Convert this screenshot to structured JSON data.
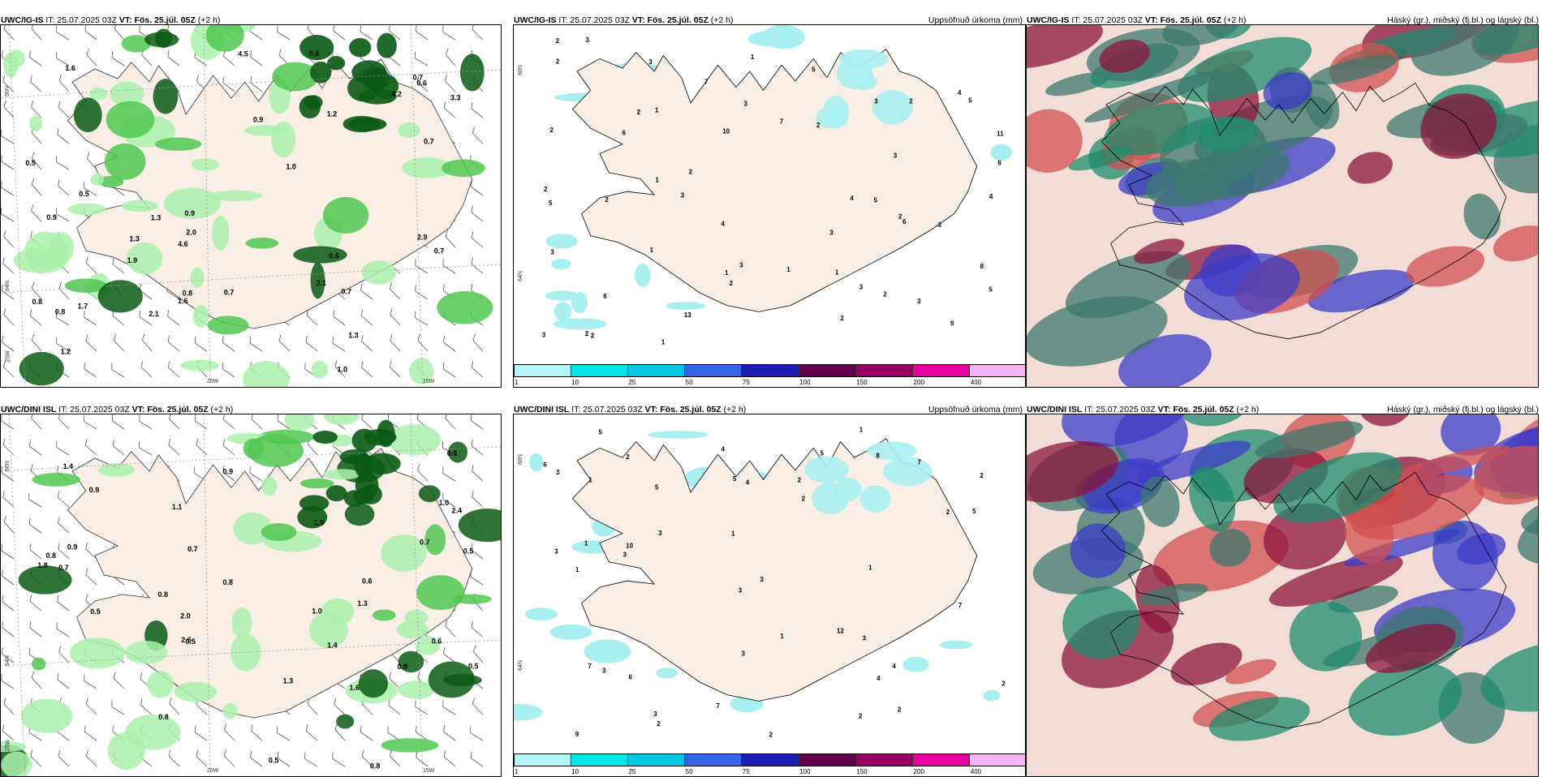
{
  "rows": [
    {
      "model": "UWC/IG-IS",
      "panels": [
        {
          "it_label": "IT: 25.07.2025 03Z",
          "vt_label": "VT: Fös. 25.júl. 05Z",
          "offset": "(+2 h)",
          "right_label": ""
        },
        {
          "it_label": "IT: 25.07.2025 03Z",
          "vt_label": "VT: Fös. 25.júl. 05Z",
          "offset": "(+2 h)",
          "right_label": "Uppsöfnuð úrkoma (mm)"
        },
        {
          "it_label": "IT: 25.07.2025 03Z",
          "vt_label": "VT: Fös. 25.júl. 05Z",
          "offset": "(+2 h)",
          "right_label": "Háský (gr.), miðský (fj.bl.) og lágský (bl.)"
        }
      ],
      "precip_values": [
        "3",
        "2",
        "2",
        "2",
        "2",
        "2",
        "3",
        "2",
        "2",
        "1",
        "2",
        "3",
        "6",
        "11",
        "8",
        "13",
        "5",
        "9",
        "10",
        "6",
        "5",
        "7",
        "2",
        "4",
        "1",
        "2",
        "1",
        "1",
        "1",
        "2",
        "3",
        "2",
        "3",
        "4",
        "3",
        "3",
        "5",
        "3",
        "3",
        "1",
        "3",
        "2",
        "3",
        "5",
        "4",
        "5",
        "6",
        "7",
        "2",
        "6",
        "1",
        "3",
        "3",
        "1",
        "2",
        "4"
      ],
      "rain_values": [
        "3.3",
        "0.7",
        "4.6",
        "4.2",
        "1.2",
        "0.8",
        "0.5",
        "0.9",
        "1.0",
        "0.7",
        "0.5",
        "0.8",
        "0.7",
        "0.6",
        "1.2",
        "2.9",
        "0.7",
        "0.6",
        "1.0",
        "1.3",
        "2.1",
        "0.9",
        "1.6",
        "1.3",
        "2.1",
        "0.6",
        "0.8",
        "0.7",
        "0.9",
        "1.7",
        "1.9",
        "4.5",
        "1.3",
        "1.6",
        "2.0"
      ]
    },
    {
      "model": "UWC/DINI ISL",
      "panels": [
        {
          "it_label": "IT: 25.07.2025 03Z",
          "vt_label": "VT: Fös. 25.júl. 05Z",
          "offset": "(+2 h)",
          "right_label": ""
        },
        {
          "it_label": "IT: 25.07.2025 03Z",
          "vt_label": "VT: Fös. 25.júl. 05Z",
          "offset": "(+2 h)",
          "right_label": "Uppsöfnuð úrkoma (mm)"
        },
        {
          "it_label": "IT: 25.07.2025 03Z",
          "vt_label": "VT: Fös. 25.júl. 05Z",
          "offset": "(+2 h)",
          "right_label": "Háský (gr.), miðský (fj.bl.) og lágský (bl.)"
        }
      ],
      "precip_values": [
        "5",
        "3",
        "3",
        "2",
        "7",
        "2",
        "2",
        "3",
        "10",
        "5",
        "3",
        "5",
        "7",
        "12",
        "9",
        "7",
        "2",
        "6",
        "6",
        "8",
        "7",
        "3",
        "1",
        "1",
        "2",
        "1",
        "4",
        "1",
        "1",
        "3",
        "2",
        "4",
        "2",
        "2",
        "3",
        "1",
        "5",
        "5",
        "4",
        "2",
        "4",
        "3",
        "3",
        "1",
        "2",
        "3"
      ],
      "rain_values": [
        "1.4",
        "2.0",
        "0.6",
        "1.0",
        "0.8",
        "0.6",
        "0.5",
        "0.7",
        "1.3",
        "0.5",
        "0.8",
        "1.9",
        "0.9",
        "0.8",
        "0.5",
        "0.8",
        "0.9",
        "1.4",
        "1.1",
        "0.9",
        "0.8",
        "1.3",
        "0.6",
        "2.4",
        "0.7",
        "1.6",
        "0.5",
        "1.8",
        "2.6",
        "0.7",
        "1.0",
        "0.5",
        "0.9"
      ]
    }
  ],
  "lat_labels": [
    "66N",
    "64N"
  ],
  "lon_labels": [
    "25W",
    "20W",
    "15W"
  ],
  "colorbar": {
    "ticks": [
      "1",
      "10",
      "25",
      "50",
      "75",
      "100",
      "150",
      "200",
      "400"
    ],
    "colors": [
      "#b4f5f5",
      "#00e6e6",
      "#00c8e6",
      "#3264e6",
      "#1e1eb4",
      "#640050",
      "#960064",
      "#e600a0",
      "#f5b4f5"
    ]
  },
  "colors": {
    "land": "#f8eee6",
    "coast": "#000000",
    "rain_light": "#aaf0aa",
    "rain_mid": "#50c850",
    "rain_dark": "#0a5a14",
    "precip_area": "#a8f0f0",
    "cloud_high": "#3c786e",
    "cloud_mid": "#8c143c",
    "cloud_low": "#3c3cc8"
  }
}
